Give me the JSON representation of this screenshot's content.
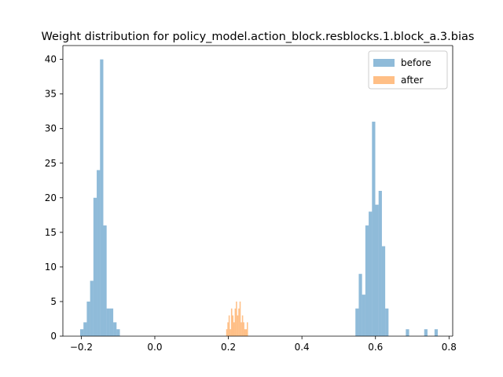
{
  "chart_data": {
    "type": "histogram",
    "title": "Weight distribution for policy_model.action_block.resblocks.1.block_a.3.bias",
    "xlabel": "",
    "ylabel": "",
    "xlim": [
      -0.25,
      0.81
    ],
    "ylim": [
      0,
      42
    ],
    "xticks": [
      -0.2,
      0.0,
      0.2,
      0.4,
      0.6,
      0.8
    ],
    "xtick_labels": [
      "−0.2",
      "0.0",
      "0.2",
      "0.4",
      "0.6",
      "0.8"
    ],
    "yticks": [
      0,
      5,
      10,
      15,
      20,
      25,
      30,
      35,
      40
    ],
    "ytick_labels": [
      "0",
      "5",
      "10",
      "15",
      "20",
      "25",
      "30",
      "35",
      "40"
    ],
    "grid": false,
    "legend_position": "top-right",
    "series": [
      {
        "name": "before",
        "color": "#1f77b4",
        "alpha": 0.5,
        "bins": [
          {
            "x0": -0.203,
            "x1": -0.194,
            "count": 1
          },
          {
            "x0": -0.194,
            "x1": -0.185,
            "count": 2
          },
          {
            "x0": -0.185,
            "x1": -0.176,
            "count": 5
          },
          {
            "x0": -0.176,
            "x1": -0.167,
            "count": 8
          },
          {
            "x0": -0.167,
            "x1": -0.158,
            "count": 20
          },
          {
            "x0": -0.158,
            "x1": -0.149,
            "count": 24
          },
          {
            "x0": -0.149,
            "x1": -0.14,
            "count": 40
          },
          {
            "x0": -0.14,
            "x1": -0.131,
            "count": 16
          },
          {
            "x0": -0.131,
            "x1": -0.122,
            "count": 4
          },
          {
            "x0": -0.122,
            "x1": -0.113,
            "count": 4
          },
          {
            "x0": -0.113,
            "x1": -0.104,
            "count": 2
          },
          {
            "x0": -0.104,
            "x1": -0.095,
            "count": 1
          },
          {
            "x0": 0.5455,
            "x1": 0.5545,
            "count": 4
          },
          {
            "x0": 0.5545,
            "x1": 0.5635,
            "count": 9
          },
          {
            "x0": 0.5635,
            "x1": 0.5725,
            "count": 6
          },
          {
            "x0": 0.5725,
            "x1": 0.5815,
            "count": 16
          },
          {
            "x0": 0.5815,
            "x1": 0.5905,
            "count": 18
          },
          {
            "x0": 0.5905,
            "x1": 0.5995,
            "count": 31
          },
          {
            "x0": 0.5995,
            "x1": 0.6085,
            "count": 19
          },
          {
            "x0": 0.6085,
            "x1": 0.6175,
            "count": 21
          },
          {
            "x0": 0.6175,
            "x1": 0.6265,
            "count": 13
          },
          {
            "x0": 0.6265,
            "x1": 0.6355,
            "count": 4
          },
          {
            "x0": 0.6825,
            "x1": 0.6915,
            "count": 1
          },
          {
            "x0": 0.7325,
            "x1": 0.7415,
            "count": 1
          },
          {
            "x0": 0.7605,
            "x1": 0.7695,
            "count": 1
          }
        ]
      },
      {
        "name": "after",
        "color": "#ff7f0e",
        "alpha": 0.5,
        "bins": [
          {
            "x0": 0.194,
            "x1": 0.1973,
            "count": 1
          },
          {
            "x0": 0.1973,
            "x1": 0.2006,
            "count": 2
          },
          {
            "x0": 0.2006,
            "x1": 0.2039,
            "count": 3
          },
          {
            "x0": 0.2039,
            "x1": 0.2072,
            "count": 1
          },
          {
            "x0": 0.2072,
            "x1": 0.2105,
            "count": 4
          },
          {
            "x0": 0.2105,
            "x1": 0.2138,
            "count": 3
          },
          {
            "x0": 0.2138,
            "x1": 0.2171,
            "count": 2
          },
          {
            "x0": 0.2171,
            "x1": 0.2204,
            "count": 4
          },
          {
            "x0": 0.2204,
            "x1": 0.2237,
            "count": 5
          },
          {
            "x0": 0.2237,
            "x1": 0.227,
            "count": 3
          },
          {
            "x0": 0.227,
            "x1": 0.2303,
            "count": 4
          },
          {
            "x0": 0.2303,
            "x1": 0.2336,
            "count": 5
          },
          {
            "x0": 0.2336,
            "x1": 0.2369,
            "count": 2
          },
          {
            "x0": 0.2369,
            "x1": 0.2402,
            "count": 3
          },
          {
            "x0": 0.2402,
            "x1": 0.2435,
            "count": 2
          },
          {
            "x0": 0.2435,
            "x1": 0.2468,
            "count": 1
          },
          {
            "x0": 0.2468,
            "x1": 0.2501,
            "count": 1
          },
          {
            "x0": 0.2501,
            "x1": 0.2534,
            "count": 2
          }
        ]
      }
    ]
  }
}
